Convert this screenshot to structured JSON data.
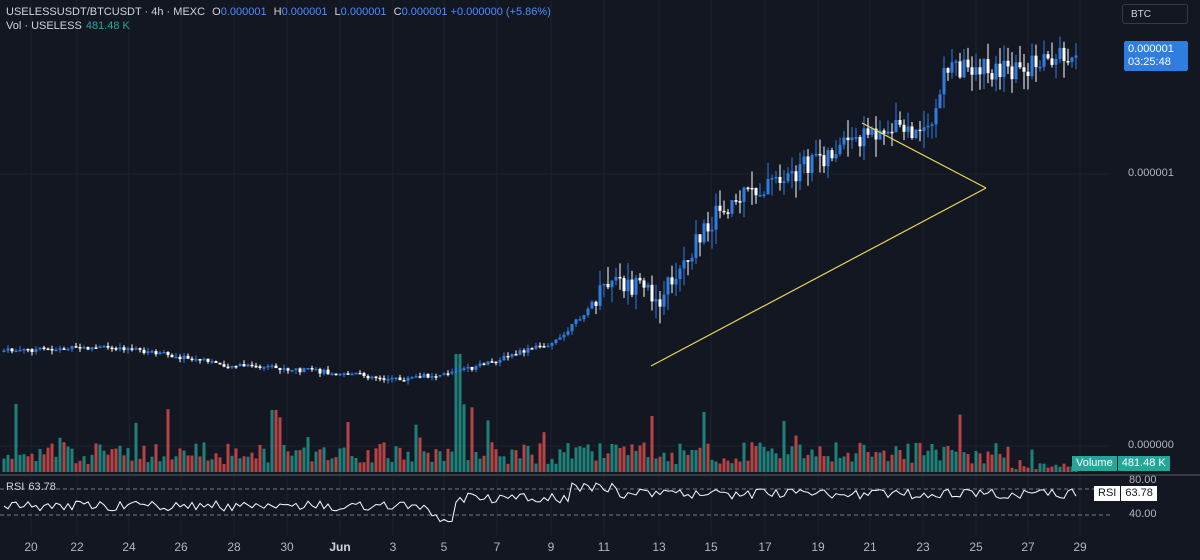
{
  "legend": {
    "symbol": "USELESSUSDT/BTCUSDT · 4h · MEXC",
    "open_label": "O",
    "open": "0.000001",
    "high_label": "H",
    "high": "0.000001",
    "low_label": "L",
    "low": "0.000001",
    "close_label": "C",
    "close": "0.000001",
    "change": "+0.000000 (+5.86%)"
  },
  "volume_legend": {
    "label": "Vol · USELESS",
    "value": "481.48 K"
  },
  "currency_badge": "BTC",
  "price_tag": {
    "price": "0.000001",
    "countdown": "03:25:48"
  },
  "price_axis": {
    "labels": [
      "0.000001",
      "0.000000"
    ]
  },
  "volume_tag": {
    "label": "Volume",
    "value": "481.48 K"
  },
  "rsi": {
    "label": "RSI",
    "value": "63.78",
    "levels": [
      "80.00",
      "40.00"
    ]
  },
  "date_axis": [
    "20",
    "22",
    "24",
    "26",
    "28",
    "30",
    "Jun",
    "3",
    "5",
    "7",
    "9",
    "11",
    "13",
    "15",
    "17",
    "19",
    "21",
    "23",
    "25",
    "27",
    "29"
  ],
  "colors": {
    "background": "#131722",
    "up": "#2f7de1",
    "down": "#ffffff",
    "vol_up": "#26a69a",
    "vol_down": "#ef5350",
    "trendline": "#e8d45a",
    "rsi_line": "#ffffff"
  },
  "chart_data": {
    "type": "candlestick",
    "timeframe": "4h",
    "price_chart": {
      "x_range": [
        "20",
        "29"
      ],
      "close_trend": [
        {
          "date": "20",
          "level": 0.19
        },
        {
          "date": "24",
          "level": 0.2
        },
        {
          "date": "28",
          "level": 0.15
        },
        {
          "date": "3",
          "level": 0.13
        },
        {
          "date": "5",
          "level": 0.11
        },
        {
          "date": "7",
          "level": 0.14
        },
        {
          "date": "9",
          "level": 0.22
        },
        {
          "date": "11",
          "level": 0.38
        },
        {
          "date": "13",
          "level": 0.34
        },
        {
          "date": "15",
          "level": 0.58
        },
        {
          "date": "17",
          "level": 0.66
        },
        {
          "date": "19",
          "level": 0.72
        },
        {
          "date": "21",
          "level": 0.8
        },
        {
          "date": "23",
          "level": 0.78
        },
        {
          "date": "24",
          "level": 0.97
        },
        {
          "date": "27",
          "level": 0.96
        },
        {
          "date": "29",
          "level": 1.02
        }
      ]
    },
    "rsi_current": 63.78,
    "rsi_levels": [
      80,
      40
    ]
  }
}
